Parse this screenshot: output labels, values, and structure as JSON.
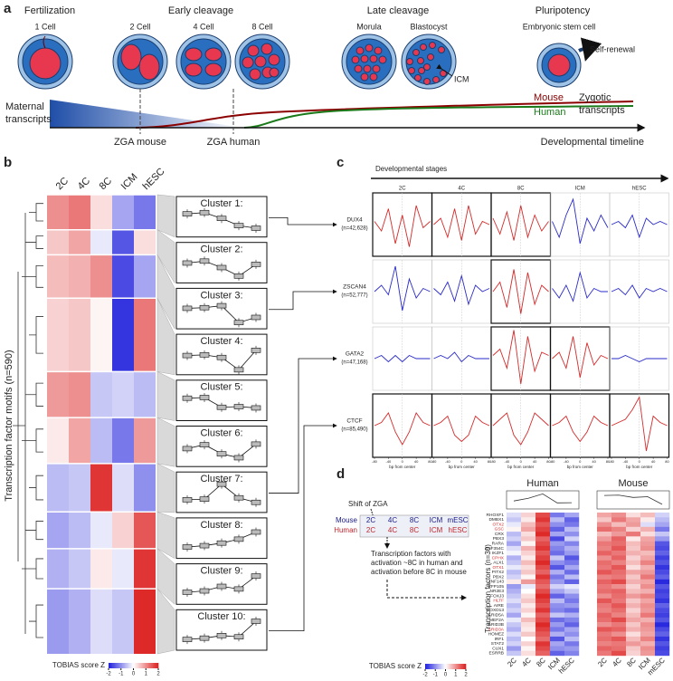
{
  "panel_a": {
    "label": "a",
    "stages": [
      "Fertilization",
      "Early cleavage",
      "Late cleavage",
      "Pluripotency"
    ],
    "cells": [
      "1 Cell",
      "2 Cell",
      "4 Cell",
      "8 Cell",
      "Morula",
      "Blastocyst",
      "Embryonic stem cell"
    ],
    "self_renewal": "Self-renewal",
    "icm": "ICM",
    "mouse": "Mouse",
    "human": "Human",
    "zygotic": [
      "Zygotic",
      "transcripts"
    ],
    "maternal": [
      "Maternal",
      "transcripts"
    ],
    "zga_mouse": "ZGA mouse",
    "zga_human": "ZGA human",
    "timeline": "Developmental timeline"
  },
  "panel_b": {
    "label": "b",
    "columns": [
      "2C",
      "4C",
      "8C",
      "ICM",
      "hESC"
    ],
    "y_label": "Transcription factor motifs (n=590)",
    "clusters": [
      "Cluster 1:",
      "Cluster 2:",
      "Cluster 3:",
      "Cluster 4:",
      "Cluster 5:",
      "Cluster 6:",
      "Cluster 7:",
      "Cluster 8:",
      "Cluster 9:",
      "Cluster 10:"
    ],
    "values": [
      [
        1.0,
        1.2,
        0.3,
        -0.8,
        -1.2
      ],
      [
        0.5,
        0.8,
        -0.2,
        -1.5,
        0.3
      ],
      [
        0.6,
        0.7,
        1.0,
        -1.6,
        -0.8
      ],
      [
        0.4,
        0.5,
        0.1,
        -1.8,
        1.2
      ],
      [
        0.9,
        1.0,
        -0.5,
        -0.4,
        -0.6
      ],
      [
        0.2,
        0.8,
        -0.6,
        -1.2,
        0.9
      ],
      [
        -0.6,
        -0.5,
        1.8,
        -0.3,
        -1.0
      ],
      [
        -0.8,
        -0.6,
        -0.2,
        0.4,
        1.5
      ],
      [
        -0.7,
        -0.5,
        0.2,
        -0.2,
        1.8
      ],
      [
        -0.9,
        -0.7,
        -0.3,
        -0.5,
        1.9
      ]
    ],
    "colorbar": {
      "title": "TOBIAS score Z",
      "lim": [
        -2,
        2
      ],
      "ticks": [
        -2,
        -1,
        0,
        1,
        2
      ]
    }
  },
  "panel_c": {
    "label": "c",
    "header": "Developmental stages",
    "columns": [
      "2C",
      "4C",
      "8C",
      "ICM",
      "hESC"
    ],
    "rows": [
      {
        "name": "DUX4",
        "n": "(n=42,628)"
      },
      {
        "name": "ZSCAN4",
        "n": "(n=52,777)"
      },
      {
        "name": "GATA2",
        "n": "(n=47,168)"
      },
      {
        "name": "CTCF",
        "n": "(n=85,490)"
      }
    ],
    "x_label": "bp from center",
    "x": [
      -80,
      -60,
      -40,
      -20,
      0,
      20,
      40,
      60,
      80
    ],
    "xlim": [
      -80,
      80
    ],
    "xticks": [
      -80,
      -40,
      0,
      40,
      80
    ],
    "ylim": [
      -1,
      1
    ],
    "highlight": [
      [
        true,
        true,
        true,
        false,
        false
      ],
      [
        false,
        false,
        true,
        false,
        false
      ],
      [
        false,
        false,
        true,
        true,
        false
      ],
      [
        true,
        true,
        true,
        true,
        true
      ]
    ],
    "colors": {
      "highlight": "#d42a2a",
      "other": "#2a2ac8"
    },
    "traces": [
      [
        [
          0.1,
          -0.2,
          0.5,
          -0.6,
          0.3,
          -0.7,
          0.6,
          -0.1,
          0.1
        ],
        [
          0.0,
          0.2,
          -0.4,
          0.5,
          -0.5,
          0.6,
          -0.3,
          0.1,
          0.0
        ],
        [
          0.2,
          -0.3,
          0.4,
          -0.5,
          0.6,
          -0.4,
          0.3,
          -0.2,
          0.1
        ],
        [
          0.1,
          -0.4,
          0.3,
          0.8,
          -0.6,
          0.2,
          -0.2,
          0.3,
          -0.1
        ],
        [
          0.0,
          0.1,
          -0.1,
          0.3,
          -0.4,
          0.2,
          0.0,
          0.1,
          0.0
        ]
      ],
      [
        [
          0.0,
          0.2,
          -0.1,
          0.8,
          -0.6,
          0.4,
          -0.2,
          0.1,
          0.0
        ],
        [
          0.1,
          -0.1,
          0.3,
          -0.3,
          0.5,
          -0.4,
          0.2,
          0.0,
          0.1
        ],
        [
          0.0,
          0.3,
          -0.5,
          0.7,
          -0.7,
          0.6,
          -0.4,
          0.2,
          0.0
        ],
        [
          0.1,
          -0.2,
          0.2,
          -0.3,
          0.6,
          -0.2,
          0.1,
          0.0,
          0.0
        ],
        [
          0.0,
          0.1,
          -0.1,
          0.2,
          -0.2,
          0.1,
          0.0,
          0.1,
          0.0
        ]
      ],
      [
        [
          0.0,
          0.1,
          -0.1,
          0.1,
          -0.1,
          0.1,
          0.0,
          0.0,
          0.0
        ],
        [
          0.0,
          0.1,
          0.0,
          0.2,
          -0.1,
          0.1,
          0.0,
          0.0,
          0.0
        ],
        [
          0.1,
          0.3,
          -0.3,
          0.9,
          -0.8,
          0.7,
          -0.4,
          0.2,
          0.1
        ],
        [
          0.0,
          0.2,
          -0.3,
          0.7,
          -0.6,
          0.5,
          -0.2,
          0.1,
          0.0
        ],
        [
          0.0,
          0.0,
          0.1,
          0.0,
          -0.1,
          0.0,
          0.0,
          0.0,
          0.0
        ]
      ],
      [
        [
          0.0,
          0.1,
          0.4,
          -0.2,
          -0.6,
          -0.2,
          0.4,
          0.1,
          0.0
        ],
        [
          0.0,
          0.1,
          0.3,
          -0.3,
          -0.5,
          -0.3,
          0.3,
          0.1,
          0.0
        ],
        [
          0.0,
          0.2,
          0.4,
          -0.3,
          -0.6,
          -0.2,
          0.4,
          0.2,
          0.0
        ],
        [
          0.0,
          0.1,
          0.3,
          -0.2,
          -0.5,
          -0.2,
          0.3,
          0.1,
          0.0
        ],
        [
          0.0,
          0.1,
          0.2,
          0.5,
          0.9,
          -0.8,
          0.3,
          0.1,
          0.0
        ]
      ]
    ]
  },
  "panel_d": {
    "label": "d",
    "shift": "Shift of ZGA",
    "mouse": "Mouse",
    "human": "Human",
    "mouse_stages": [
      "2C",
      "4C",
      "8C",
      "ICM",
      "mESC"
    ],
    "human_stages": [
      "2C",
      "4C",
      "8C",
      "ICM",
      "hESC"
    ],
    "note": [
      "Transcription factors with",
      "activation ~8C in human and",
      "activation before 8C in mouse"
    ],
    "y_label": "Transcription factors (n=30)",
    "genes": [
      "RHOXF1",
      "DMBX1",
      "OTX2",
      "GSC",
      "CRX",
      "PBX3",
      "RARA",
      "ZNF354C",
      "IKZF1",
      "CPHX",
      "ALX1",
      "OTX1",
      "PITX2",
      "PBX2",
      "ZNF143",
      "ZFP105",
      "NR2E3",
      "FOXJ3",
      "HLTF",
      "AIRE",
      "HOXD13",
      "ARID5A",
      "MEF2A",
      "ARID3B",
      "ARID3A",
      "HOMEZ",
      "IRF1",
      "STAT2",
      "CUX1",
      "ESRRB"
    ],
    "highlighted": [
      2,
      3,
      9,
      11,
      18,
      24
    ],
    "highlight_color": "#d42a2a",
    "human_values": [
      [
        -0.3,
        0.4,
        1.6,
        -1.2,
        -0.8
      ],
      [
        -0.5,
        0.2,
        1.8,
        -0.6,
        -1.4
      ],
      [
        -0.2,
        0.6,
        1.5,
        -1.0,
        -1.2
      ],
      [
        0.1,
        0.8,
        1.7,
        -1.4,
        -0.6
      ],
      [
        -0.6,
        0.3,
        1.9,
        -0.8,
        -1.0
      ],
      [
        -0.4,
        0.5,
        1.4,
        -1.6,
        -0.4
      ],
      [
        -0.8,
        0.1,
        1.6,
        -0.9,
        -1.1
      ],
      [
        -0.3,
        0.7,
        1.8,
        -1.1,
        -0.7
      ],
      [
        -0.1,
        0.4,
        1.5,
        -1.3,
        -0.9
      ],
      [
        -0.7,
        0.2,
        1.7,
        -0.5,
        -1.5
      ],
      [
        -0.5,
        0.6,
        1.9,
        -1.0,
        -1.2
      ],
      [
        -0.2,
        0.3,
        1.6,
        -1.5,
        -0.8
      ],
      [
        -0.6,
        0.5,
        1.4,
        -0.7,
        -1.3
      ],
      [
        -0.4,
        0.1,
        1.8,
        -1.2,
        -0.6
      ],
      [
        0.2,
        0.9,
        1.5,
        -0.9,
        -1.4
      ],
      [
        -0.9,
        -0.2,
        1.3,
        -0.4,
        -0.2
      ],
      [
        -0.7,
        0.0,
        1.6,
        -0.8,
        -0.5
      ],
      [
        -0.5,
        0.3,
        1.9,
        -1.4,
        -1.0
      ],
      [
        -0.3,
        0.5,
        1.7,
        -0.6,
        -1.2
      ],
      [
        -0.6,
        0.2,
        1.5,
        -1.0,
        -0.9
      ],
      [
        -0.4,
        0.4,
        1.8,
        -1.1,
        -1.3
      ],
      [
        -0.8,
        0.1,
        1.4,
        -0.5,
        -0.7
      ],
      [
        -0.2,
        0.6,
        1.6,
        -1.3,
        -1.1
      ],
      [
        -0.5,
        0.3,
        1.9,
        -0.9,
        -1.4
      ],
      [
        -0.7,
        0.2,
        1.7,
        -1.2,
        -0.8
      ],
      [
        -0.3,
        0.5,
        1.5,
        -0.7,
        -1.0
      ],
      [
        -0.6,
        0.0,
        1.3,
        -1.5,
        -0.6
      ],
      [
        -0.4,
        0.4,
        1.8,
        -0.8,
        -1.2
      ],
      [
        -0.9,
        0.1,
        1.6,
        -1.0,
        -0.9
      ],
      [
        -0.5,
        0.3,
        1.4,
        -1.4,
        -1.1
      ]
    ],
    "mouse_values": [
      [
        0.8,
        1.0,
        0.3,
        0.6,
        -0.4
      ],
      [
        0.5,
        1.2,
        0.8,
        0.2,
        -0.6
      ],
      [
        1.0,
        0.6,
        0.9,
        -0.3,
        -0.8
      ],
      [
        1.3,
        1.1,
        0.4,
        0.7,
        -1.2
      ],
      [
        0.6,
        0.9,
        1.2,
        0.3,
        -0.5
      ],
      [
        0.9,
        1.4,
        0.2,
        0.8,
        -0.9
      ],
      [
        1.2,
        1.3,
        0.6,
        0.9,
        -1.5
      ],
      [
        1.1,
        1.5,
        0.5,
        1.0,
        -1.6
      ],
      [
        1.4,
        1.2,
        0.7,
        0.6,
        -1.4
      ],
      [
        1.0,
        1.4,
        0.4,
        0.8,
        -1.7
      ],
      [
        1.3,
        1.1,
        0.6,
        1.1,
        -1.5
      ],
      [
        1.2,
        1.5,
        0.3,
        0.7,
        -1.8
      ],
      [
        1.5,
        1.3,
        0.8,
        0.9,
        -1.6
      ],
      [
        1.1,
        1.2,
        0.5,
        1.2,
        -1.4
      ],
      [
        1.4,
        1.6,
        0.7,
        0.8,
        -1.9
      ],
      [
        1.2,
        1.0,
        0.4,
        1.0,
        -1.5
      ],
      [
        1.3,
        1.4,
        0.6,
        0.7,
        -1.7
      ],
      [
        1.0,
        1.3,
        0.9,
        1.1,
        -1.6
      ],
      [
        1.5,
        1.2,
        0.5,
        0.8,
        -1.8
      ],
      [
        1.2,
        1.5,
        0.7,
        1.0,
        -1.4
      ],
      [
        1.1,
        1.3,
        0.4,
        0.9,
        -1.6
      ],
      [
        1.4,
        1.1,
        0.6,
        1.2,
        -1.7
      ],
      [
        1.3,
        1.6,
        0.8,
        0.7,
        -1.5
      ],
      [
        1.0,
        1.2,
        0.5,
        1.0,
        -1.9
      ],
      [
        1.5,
        1.4,
        0.7,
        0.9,
        -1.6
      ],
      [
        1.2,
        1.0,
        0.3,
        0.8,
        -1.4
      ],
      [
        1.3,
        1.5,
        0.6,
        1.1,
        -1.8
      ],
      [
        1.1,
        1.2,
        0.9,
        0.7,
        -1.5
      ],
      [
        1.4,
        1.3,
        0.5,
        1.0,
        -1.7
      ],
      [
        1.2,
        1.6,
        0.4,
        0.9,
        -1.6
      ]
    ],
    "colorbar": {
      "title": "TOBIAS score Z",
      "lim": [
        -2,
        2
      ],
      "ticks": [
        -2,
        -1,
        0,
        1,
        2
      ]
    }
  }
}
